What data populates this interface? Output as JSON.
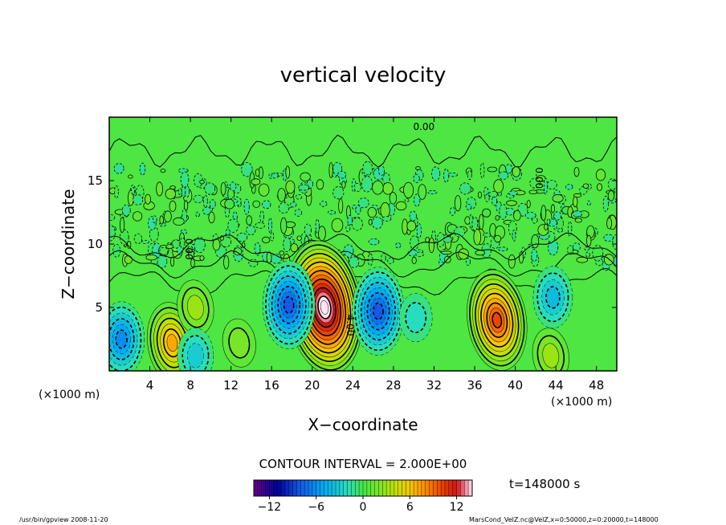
{
  "figure": {
    "title": "vertical velocity",
    "xlabel": "X−coordinate",
    "ylabel": "Z−coordinate",
    "x_unit_left": "(×1000 m)",
    "x_unit_right": "(×1000 m)",
    "contour_interval_text": "CONTOUR INTERVAL = 2.000E+00",
    "time_text": "t=148000 s",
    "footer_left": "/usr/bin/gpview   2008-11-20",
    "footer_right": "MarsCond_VelZ.nc@VelZ,x=0:50000,z=0:20000,t=148000"
  },
  "chart_data": {
    "type": "heatmap",
    "title": "vertical velocity",
    "xlabel": "X−coordinate",
    "ylabel": "Z−coordinate",
    "x_units": "×1000 m",
    "z_units": "×1000 m",
    "xlim": [
      0,
      50
    ],
    "ylim": [
      0,
      20
    ],
    "x_ticks": [
      4,
      8,
      12,
      16,
      20,
      24,
      28,
      32,
      36,
      40,
      44,
      48
    ],
    "y_ticks": [
      5,
      10,
      15
    ],
    "contour_labels": [
      "0.00",
      "0.00",
      "0.00",
      "4.00"
    ],
    "colorbar": {
      "min": -14,
      "max": 14,
      "ticks": [
        -12,
        -6,
        0,
        6,
        12
      ]
    },
    "features": [
      {
        "kind": "updraft",
        "x": 21.2,
        "z": 5.0,
        "peak": 15
      },
      {
        "kind": "updraft",
        "x": 38.2,
        "z": 4.0,
        "peak": 10
      },
      {
        "kind": "updraft",
        "x": 6.2,
        "z": 2.2,
        "peak": 7
      },
      {
        "kind": "updraft",
        "x": 8.5,
        "z": 5.0,
        "peak": 3
      },
      {
        "kind": "updraft",
        "x": 43.5,
        "z": 1.2,
        "peak": 3
      },
      {
        "kind": "updraft",
        "x": 12.8,
        "z": 2.2,
        "peak": 2
      },
      {
        "kind": "downdraft",
        "x": 1.2,
        "z": 2.5,
        "peak": -6
      },
      {
        "kind": "downdraft",
        "x": 17.7,
        "z": 5.2,
        "peak": -8
      },
      {
        "kind": "downdraft",
        "x": 26.5,
        "z": 4.7,
        "peak": -8
      },
      {
        "kind": "downdraft",
        "x": 43.7,
        "z": 5.8,
        "peak": -4
      },
      {
        "kind": "downdraft",
        "x": 8.5,
        "z": 1.2,
        "peak": -3
      },
      {
        "kind": "downdraft",
        "x": 30.2,
        "z": 4.2,
        "peak": -2
      }
    ],
    "grid": false,
    "legend": "colorbar bottom"
  }
}
